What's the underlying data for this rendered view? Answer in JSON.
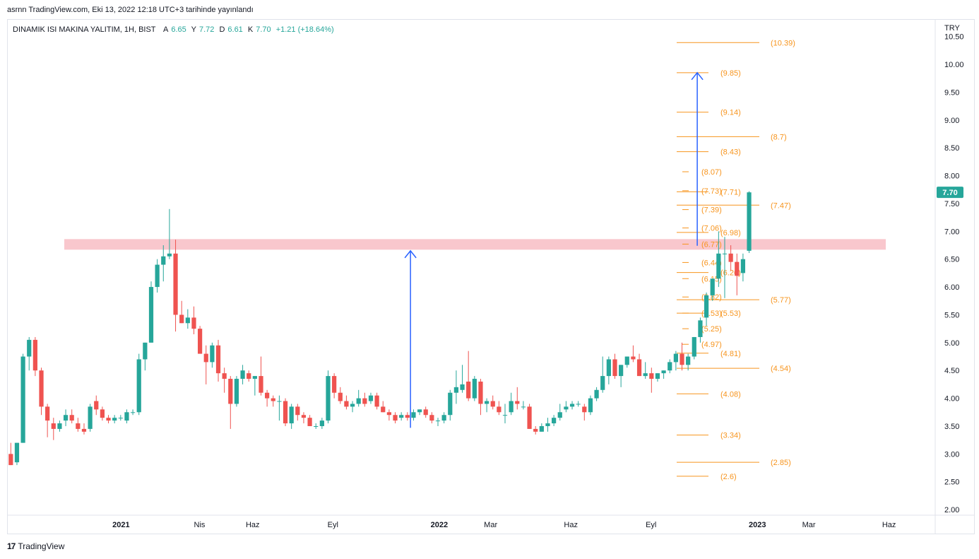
{
  "caption": "asrnn TradingView.com, Eki 13, 2022 12:18 UTC+3 tarihinde yayınlandı",
  "legend": {
    "symbol": "DINAMIK ISI MAKINA YALITIM, 1H, BIST",
    "o_label": "A",
    "o": "6.65",
    "h_label": "Y",
    "h": "7.72",
    "l_label": "D",
    "l": "6.61",
    "c_label": "K",
    "c": "7.70",
    "change": "+1.21 (+18.64%)"
  },
  "currency": "TRY",
  "footer": {
    "logo_mark": "17",
    "logo_text": "TradingView"
  },
  "colors": {
    "up": "#26a69a",
    "down": "#ef5350",
    "fib": "#f7941d",
    "arrow": "#2962ff",
    "zone": "#f7b9c0",
    "axis_text": "#131722",
    "grid": "#e0e3eb"
  },
  "chart_data": {
    "type": "candlestick",
    "y_axis": {
      "min": 1.9,
      "max": 10.8,
      "ticks": [
        2.0,
        2.5,
        3.0,
        3.5,
        4.0,
        4.5,
        5.0,
        5.5,
        6.0,
        6.5,
        7.0,
        7.5,
        8.0,
        8.5,
        9.0,
        9.5,
        10.0,
        10.5
      ],
      "tick_labels": [
        "2.00",
        "2.50",
        "3.00",
        "3.50",
        "4.00",
        "4.50",
        "5.00",
        "5.50",
        "6.00",
        "6.50",
        "7.00",
        "7.50",
        "8.00",
        "8.50",
        "9.00",
        "9.50",
        "10.00",
        "10.50"
      ]
    },
    "x_axis": {
      "start": "2020-08-24",
      "end": "2023-07-24",
      "ticks": [
        {
          "date": "2021-01-01",
          "label": "2021",
          "bold": true
        },
        {
          "date": "2021-04-01",
          "label": "Nis"
        },
        {
          "date": "2021-06-01",
          "label": "Haz"
        },
        {
          "date": "2021-09-01",
          "label": "Eyl"
        },
        {
          "date": "2022-01-01",
          "label": "2022",
          "bold": true
        },
        {
          "date": "2022-03-01",
          "label": "Mar"
        },
        {
          "date": "2022-06-01",
          "label": "Haz"
        },
        {
          "date": "2022-09-01",
          "label": "Eyl"
        },
        {
          "date": "2023-01-01",
          "label": "2023",
          "bold": true
        },
        {
          "date": "2023-03-01",
          "label": "Mar"
        },
        {
          "date": "2023-06-01",
          "label": "Haz"
        }
      ]
    },
    "last_price": {
      "value": 7.7,
      "label": "7.70"
    },
    "candles_start": "2020-08-24",
    "candles_interval_days": 7,
    "candles": [
      [
        3.0,
        3.2,
        2.8,
        2.8
      ],
      [
        2.85,
        3.2,
        2.8,
        3.2
      ],
      [
        3.2,
        4.8,
        3.2,
        4.75
      ],
      [
        4.75,
        5.1,
        4.5,
        5.05
      ],
      [
        5.05,
        5.1,
        4.4,
        4.5
      ],
      [
        4.5,
        4.55,
        3.7,
        3.85
      ],
      [
        3.85,
        3.9,
        3.3,
        3.6
      ],
      [
        3.55,
        3.65,
        3.25,
        3.45
      ],
      [
        3.45,
        3.6,
        3.4,
        3.55
      ],
      [
        3.6,
        3.8,
        3.5,
        3.7
      ],
      [
        3.7,
        3.8,
        3.55,
        3.6
      ],
      [
        3.55,
        3.65,
        3.4,
        3.45
      ],
      [
        3.45,
        3.55,
        3.35,
        3.4
      ],
      [
        3.45,
        3.9,
        3.4,
        3.85
      ],
      [
        3.95,
        4.05,
        3.7,
        3.8
      ],
      [
        3.8,
        3.85,
        3.6,
        3.65
      ],
      [
        3.65,
        3.7,
        3.55,
        3.6
      ],
      [
        3.6,
        3.7,
        3.55,
        3.65
      ],
      [
        3.65,
        3.7,
        3.6,
        3.65
      ],
      [
        3.6,
        3.8,
        3.55,
        3.75
      ],
      [
        3.75,
        3.8,
        3.7,
        3.75
      ],
      [
        3.75,
        4.8,
        3.7,
        4.7
      ],
      [
        4.7,
        5.0,
        4.5,
        5.0
      ],
      [
        5.0,
        6.1,
        5.0,
        6.0
      ],
      [
        6.0,
        6.5,
        5.9,
        6.4
      ],
      [
        6.4,
        6.75,
        6.1,
        6.55
      ],
      [
        6.55,
        7.4,
        6.5,
        6.6
      ],
      [
        6.6,
        6.85,
        5.2,
        5.5
      ],
      [
        5.5,
        5.75,
        5.35,
        5.35
      ],
      [
        5.35,
        5.6,
        5.25,
        5.45
      ],
      [
        5.45,
        5.65,
        5.15,
        5.25
      ],
      [
        5.25,
        5.3,
        4.8,
        4.8
      ],
      [
        4.8,
        4.95,
        4.25,
        4.65
      ],
      [
        4.65,
        5.0,
        4.55,
        4.95
      ],
      [
        4.95,
        5.05,
        4.3,
        4.45
      ],
      [
        4.45,
        4.55,
        4.1,
        4.35
      ],
      [
        4.35,
        4.4,
        3.45,
        3.9
      ],
      [
        3.9,
        4.4,
        3.85,
        4.35
      ],
      [
        4.35,
        4.6,
        4.25,
        4.5
      ],
      [
        4.45,
        4.5,
        4.3,
        4.35
      ],
      [
        4.35,
        4.4,
        4.05,
        4.4
      ],
      [
        4.4,
        4.75,
        4.05,
        4.1
      ],
      [
        4.1,
        4.15,
        3.85,
        4.0
      ],
      [
        4.0,
        4.05,
        3.85,
        3.95
      ],
      [
        3.95,
        4.05,
        3.6,
        3.95
      ],
      [
        3.95,
        4.0,
        3.5,
        3.55
      ],
      [
        3.55,
        3.9,
        3.45,
        3.85
      ],
      [
        3.85,
        3.9,
        3.6,
        3.7
      ],
      [
        3.7,
        3.75,
        3.55,
        3.65
      ],
      [
        3.65,
        3.7,
        3.5,
        3.5
      ],
      [
        3.5,
        3.55,
        3.45,
        3.5
      ],
      [
        3.5,
        3.65,
        3.45,
        3.6
      ],
      [
        3.6,
        4.5,
        3.55,
        4.4
      ],
      [
        4.4,
        4.45,
        4.0,
        4.1
      ],
      [
        4.1,
        4.2,
        3.9,
        3.95
      ],
      [
        3.95,
        4.05,
        3.8,
        3.85
      ],
      [
        3.85,
        3.95,
        3.75,
        3.9
      ],
      [
        3.9,
        4.15,
        3.85,
        4.0
      ],
      [
        4.0,
        4.1,
        3.85,
        3.9
      ],
      [
        3.95,
        4.1,
        3.9,
        4.05
      ],
      [
        4.05,
        4.1,
        3.8,
        3.85
      ],
      [
        3.85,
        3.95,
        3.75,
        3.75
      ],
      [
        3.75,
        3.8,
        3.6,
        3.7
      ],
      [
        3.7,
        3.75,
        3.55,
        3.6
      ],
      [
        3.65,
        3.75,
        3.6,
        3.7
      ],
      [
        3.7,
        3.75,
        3.6,
        3.65
      ],
      [
        3.65,
        3.8,
        3.6,
        3.75
      ],
      [
        3.75,
        3.8,
        3.7,
        3.8
      ],
      [
        3.8,
        3.85,
        3.65,
        3.7
      ],
      [
        3.7,
        3.75,
        3.55,
        3.6
      ],
      [
        3.6,
        3.65,
        3.5,
        3.6
      ],
      [
        3.6,
        3.75,
        3.55,
        3.7
      ],
      [
        3.7,
        4.15,
        3.6,
        4.1
      ],
      [
        4.1,
        4.5,
        3.9,
        4.2
      ],
      [
        4.15,
        4.6,
        4.1,
        4.25
      ],
      [
        4.3,
        4.85,
        3.95,
        4.0
      ],
      [
        4.0,
        4.4,
        3.95,
        4.35
      ],
      [
        4.3,
        4.35,
        3.7,
        3.9
      ],
      [
        3.9,
        4.0,
        3.75,
        3.95
      ],
      [
        3.95,
        4.05,
        3.8,
        3.85
      ],
      [
        3.85,
        3.95,
        3.7,
        3.75
      ],
      [
        3.7,
        3.9,
        3.55,
        3.7
      ],
      [
        3.75,
        4.1,
        3.7,
        3.95
      ],
      [
        3.95,
        4.2,
        3.8,
        3.9
      ],
      [
        3.85,
        3.95,
        3.8,
        3.85
      ],
      [
        3.85,
        3.9,
        3.45,
        3.45
      ],
      [
        3.45,
        3.5,
        3.35,
        3.4
      ],
      [
        3.4,
        3.55,
        3.4,
        3.5
      ],
      [
        3.5,
        3.65,
        3.4,
        3.55
      ],
      [
        3.55,
        3.7,
        3.5,
        3.65
      ],
      [
        3.65,
        3.9,
        3.6,
        3.75
      ],
      [
        3.8,
        3.95,
        3.75,
        3.85
      ],
      [
        3.85,
        3.95,
        3.8,
        3.9
      ],
      [
        3.9,
        3.95,
        3.85,
        3.9
      ],
      [
        3.85,
        3.9,
        3.6,
        3.75
      ],
      [
        3.75,
        4.05,
        3.7,
        4.0
      ],
      [
        4.0,
        4.2,
        3.95,
        4.15
      ],
      [
        4.15,
        4.75,
        4.1,
        4.4
      ],
      [
        4.4,
        4.75,
        4.25,
        4.7
      ],
      [
        4.7,
        4.8,
        4.35,
        4.4
      ],
      [
        4.4,
        4.6,
        4.2,
        4.6
      ],
      [
        4.6,
        4.75,
        4.55,
        4.75
      ],
      [
        4.75,
        4.95,
        4.65,
        4.7
      ],
      [
        4.7,
        4.8,
        4.4,
        4.4
      ],
      [
        4.4,
        4.65,
        4.35,
        4.45
      ],
      [
        4.45,
        4.55,
        4.1,
        4.35
      ],
      [
        4.35,
        4.45,
        4.3,
        4.45
      ],
      [
        4.45,
        4.5,
        4.35,
        4.5
      ],
      [
        4.5,
        4.7,
        4.45,
        4.65
      ],
      [
        4.65,
        4.85,
        4.5,
        4.8
      ],
      [
        4.8,
        5.0,
        4.5,
        4.6
      ],
      [
        4.6,
        4.8,
        4.5,
        4.75
      ],
      [
        4.75,
        5.1,
        4.7,
        5.1
      ],
      [
        5.1,
        5.45,
        5.0,
        5.4
      ],
      [
        5.45,
        5.9,
        5.3,
        5.85
      ],
      [
        5.85,
        6.15,
        5.75,
        6.15
      ],
      [
        6.15,
        7.0,
        6.0,
        6.6
      ],
      [
        6.6,
        6.9,
        5.8,
        6.6
      ],
      [
        6.6,
        6.75,
        6.3,
        6.45
      ],
      [
        6.45,
        6.6,
        5.85,
        6.2
      ],
      [
        6.25,
        6.6,
        6.1,
        6.5
      ],
      [
        6.65,
        7.72,
        6.61,
        7.7
      ]
    ],
    "horizontal_levels": {
      "zone_low": 6.67,
      "zone_high": 6.86,
      "levels": [
        {
          "value": 10.39,
          "label": "(10.39)",
          "kind": "main"
        },
        {
          "value": 9.85,
          "label": "(9.85)",
          "kind": "mid"
        },
        {
          "value": 9.14,
          "label": "(9.14)",
          "kind": "mid"
        },
        {
          "value": 8.7,
          "label": "(8.7)",
          "kind": "main"
        },
        {
          "value": 8.43,
          "label": "(8.43)",
          "kind": "mid"
        },
        {
          "value": 8.07,
          "label": "(8.07)",
          "kind": "short"
        },
        {
          "value": 7.73,
          "label": "(7.73)",
          "kind": "short"
        },
        {
          "value": 7.71,
          "label": "(7.71)",
          "kind": "mid"
        },
        {
          "value": 7.47,
          "label": "(7.47)",
          "kind": "main"
        },
        {
          "value": 7.39,
          "label": "(7.39)",
          "kind": "short"
        },
        {
          "value": 7.06,
          "label": "(7.06)",
          "kind": "short"
        },
        {
          "value": 6.98,
          "label": "(6.98)",
          "kind": "mid"
        },
        {
          "value": 6.77,
          "label": "(6.77)",
          "kind": "short"
        },
        {
          "value": 6.44,
          "label": "(6.44)",
          "kind": "short"
        },
        {
          "value": 6.26,
          "label": "(6.26)",
          "kind": "mid"
        },
        {
          "value": 6.15,
          "label": "(6.15)",
          "kind": "short"
        },
        {
          "value": 5.82,
          "label": "(5.82)",
          "kind": "short"
        },
        {
          "value": 5.77,
          "label": "(5.77)",
          "kind": "main"
        },
        {
          "value": 5.53,
          "label": "(5.53)",
          "kind": "short"
        },
        {
          "value": 5.53,
          "label": "(5.53)",
          "kind": "mid"
        },
        {
          "value": 5.25,
          "label": "(5.25)",
          "kind": "short"
        },
        {
          "value": 4.97,
          "label": "(4.97)",
          "kind": "short"
        },
        {
          "value": 4.81,
          "label": "(4.81)",
          "kind": "mid"
        },
        {
          "value": 4.54,
          "label": "(4.54)",
          "kind": "main"
        },
        {
          "value": 4.08,
          "label": "(4.08)",
          "kind": "mid"
        },
        {
          "value": 3.34,
          "label": "(3.34)",
          "kind": "mid"
        },
        {
          "value": 2.85,
          "label": "(2.85)",
          "kind": "main"
        },
        {
          "value": 2.6,
          "label": "(2.6)",
          "kind": "mid"
        }
      ]
    },
    "arrows": [
      {
        "date": "2021-11-29",
        "from": 3.47,
        "to": 6.65
      },
      {
        "date": "2022-10-24",
        "from": 6.74,
        "to": 9.85
      }
    ]
  }
}
